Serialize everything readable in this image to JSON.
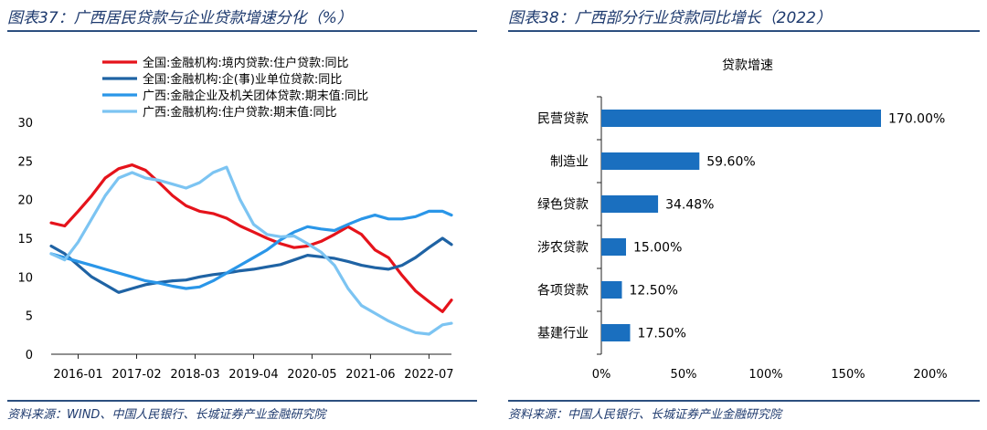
{
  "left": {
    "figure_title": "图表37：广西居民贷款与企业贷款增速分化（%）",
    "source": "资料来源：WIND、中国人民银行、长城证券产业金融研究院"
  },
  "right": {
    "figure_title": "图表38：广西部分行业贷款同比增长（2022）",
    "source": "资料来源：中国人民银行、长城证券产业金融研究院"
  },
  "colors": {
    "red": "#e5131b",
    "navy": "#1f63a4",
    "blue": "#2a96e8",
    "lightblue": "#7cc4f2",
    "bar": "#1a6fbf"
  },
  "chart_data": [
    {
      "type": "line",
      "title": "广西居民贷款与企业贷款增速分化（%）",
      "ylim": [
        0,
        30
      ],
      "yticks": [
        "0",
        "5",
        "10",
        "15",
        "20",
        "25",
        "30"
      ],
      "xlim": [
        "2015-07",
        "2022-12"
      ],
      "xticks": [
        "2016-01",
        "2017-02",
        "2018-03",
        "2019-04",
        "2020-05",
        "2021-06",
        "2022-07"
      ],
      "series": [
        {
          "name": "全国:金融机构:境内贷款:住户贷款:同比",
          "color": "#e5131b",
          "x": [
            "2015-07",
            "2015-10",
            "2016-01",
            "2016-04",
            "2016-07",
            "2016-10",
            "2017-01",
            "2017-04",
            "2017-07",
            "2017-10",
            "2018-01",
            "2018-04",
            "2018-07",
            "2018-10",
            "2019-01",
            "2019-04",
            "2019-07",
            "2019-10",
            "2020-01",
            "2020-04",
            "2020-07",
            "2020-10",
            "2021-01",
            "2021-04",
            "2021-07",
            "2021-10",
            "2022-01",
            "2022-04",
            "2022-07",
            "2022-10",
            "2022-12"
          ],
          "values": [
            17,
            16.6,
            18.5,
            20.5,
            22.8,
            24,
            24.5,
            23.8,
            22.2,
            20.5,
            19.2,
            18.5,
            18.2,
            17.6,
            16.6,
            15.8,
            15,
            14.3,
            13.8,
            14,
            14.6,
            15.5,
            16.5,
            15.5,
            13.5,
            12.5,
            10.2,
            8.2,
            6.8,
            5.5,
            7
          ]
        },
        {
          "name": "全国:金融机构:企(事)业单位贷款:同比",
          "color": "#1f63a4",
          "x": [
            "2015-07",
            "2015-10",
            "2016-01",
            "2016-04",
            "2016-07",
            "2016-10",
            "2017-01",
            "2017-04",
            "2017-07",
            "2017-10",
            "2018-01",
            "2018-04",
            "2018-07",
            "2018-10",
            "2019-01",
            "2019-04",
            "2019-07",
            "2019-10",
            "2020-01",
            "2020-04",
            "2020-07",
            "2020-10",
            "2021-01",
            "2021-04",
            "2021-07",
            "2021-10",
            "2022-01",
            "2022-04",
            "2022-07",
            "2022-10",
            "2022-12"
          ],
          "values": [
            14,
            13,
            11.5,
            10,
            9,
            8,
            8.5,
            9,
            9.3,
            9.5,
            9.6,
            10,
            10.3,
            10.5,
            10.8,
            11,
            11.3,
            11.6,
            12.2,
            12.8,
            12.6,
            12.4,
            12,
            11.5,
            11.2,
            11,
            11.5,
            12.5,
            13.8,
            15,
            14.2
          ]
        },
        {
          "name": "广西:金融企业及机关团体贷款:期末值:同比",
          "color": "#2a96e8",
          "x": [
            "2015-07",
            "2015-10",
            "2016-01",
            "2016-04",
            "2016-07",
            "2016-10",
            "2017-01",
            "2017-04",
            "2017-07",
            "2017-10",
            "2018-01",
            "2018-04",
            "2018-07",
            "2018-10",
            "2019-01",
            "2019-04",
            "2019-07",
            "2019-10",
            "2020-01",
            "2020-04",
            "2020-07",
            "2020-10",
            "2021-01",
            "2021-04",
            "2021-07",
            "2021-10",
            "2022-01",
            "2022-04",
            "2022-07",
            "2022-10",
            "2022-12"
          ],
          "values": [
            13,
            12.5,
            12,
            11.5,
            11,
            10.5,
            10,
            9.5,
            9.2,
            8.8,
            8.5,
            8.7,
            9.5,
            10.5,
            11.5,
            12.5,
            13.5,
            14.8,
            15.8,
            16.5,
            16.2,
            16,
            16.8,
            17.5,
            18,
            17.5,
            17.5,
            17.8,
            18.5,
            18.5,
            18
          ]
        },
        {
          "name": "广西:金融机构:住户贷款:期末值:同比",
          "color": "#7cc4f2",
          "x": [
            "2015-07",
            "2015-10",
            "2016-01",
            "2016-04",
            "2016-07",
            "2016-10",
            "2017-01",
            "2017-04",
            "2017-07",
            "2017-10",
            "2018-01",
            "2018-04",
            "2018-07",
            "2018-10",
            "2019-01",
            "2019-04",
            "2019-07",
            "2019-10",
            "2020-01",
            "2020-04",
            "2020-07",
            "2020-10",
            "2021-01",
            "2021-04",
            "2021-07",
            "2021-10",
            "2022-01",
            "2022-04",
            "2022-07",
            "2022-10",
            "2022-12"
          ],
          "values": [
            13,
            12.2,
            14.5,
            17.5,
            20.5,
            22.8,
            23.5,
            22.8,
            22.5,
            22,
            21.5,
            22.2,
            23.5,
            24.2,
            20,
            16.8,
            15.5,
            15.2,
            15.3,
            14.3,
            13.2,
            11.5,
            8.5,
            6.3,
            5.3,
            4.3,
            3.5,
            2.8,
            2.6,
            3.8,
            4
          ]
        }
      ]
    },
    {
      "type": "bar",
      "orientation": "horizontal",
      "title": "贷款增速",
      "categories": [
        "民营贷款",
        "制造业",
        "绿色贷款",
        "涉农贷款",
        "各项贷款",
        "基建行业"
      ],
      "values": [
        170.0,
        59.6,
        34.48,
        15.0,
        12.5,
        17.5
      ],
      "value_labels": [
        "170.00%",
        "59.60%",
        "34.48%",
        "15.00%",
        "12.50%",
        "17.50%"
      ],
      "xlim": [
        0,
        200
      ],
      "xticks": [
        "0%",
        "50%",
        "100%",
        "150%",
        "200%"
      ],
      "color": "#1a6fbf"
    }
  ]
}
